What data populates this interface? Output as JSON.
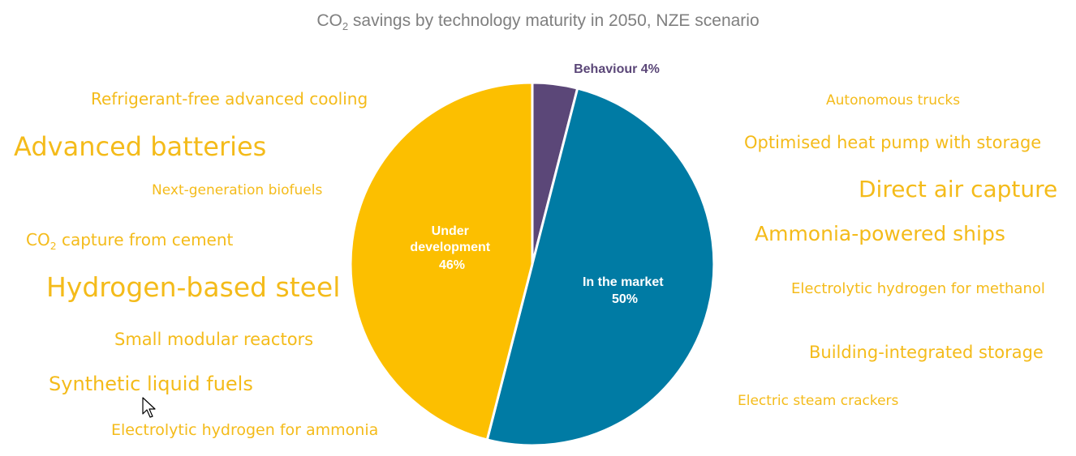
{
  "chart_data": {
    "type": "pie",
    "title_main": "CO",
    "title_sub": "2",
    "title_rest": " savings by technology maturity in 2050, NZE scenario",
    "slices": [
      {
        "label": "Behaviour",
        "value": 4,
        "pct_text": "4%",
        "color": "#5b4778"
      },
      {
        "label": "In the market",
        "value": 50,
        "pct_text": "50%",
        "color": "#007ba4"
      },
      {
        "label": "Under development",
        "value": 46,
        "pct_text": "46%",
        "color": "#fcbf00"
      }
    ],
    "behaviour_label": "Behaviour 4%",
    "in_market_line1": "In the market",
    "in_market_line2": "50%",
    "under_dev_line1": "Under",
    "under_dev_line2": "development",
    "under_dev_line3": "46%"
  },
  "technologies_left": [
    {
      "label": "Refrigerant-free advanced cooling"
    },
    {
      "label": "Advanced batteries"
    },
    {
      "label": "Next-generation biofuels"
    },
    {
      "label_main": "CO",
      "label_sub": "2",
      "label_rest": " capture from cement"
    },
    {
      "label": "Hydrogen-based steel"
    },
    {
      "label": "Small modular reactors"
    },
    {
      "label": "Synthetic liquid fuels"
    },
    {
      "label": "Electrolytic hydrogen for ammonia"
    }
  ],
  "technologies_right": [
    {
      "label": "Autonomous trucks"
    },
    {
      "label": "Optimised heat pump with storage"
    },
    {
      "label": "Direct air capture"
    },
    {
      "label": "Ammonia-powered ships"
    },
    {
      "label": "Electrolytic hydrogen for methanol"
    },
    {
      "label": "Building-integrated storage"
    },
    {
      "label": "Electric steam crackers"
    }
  ],
  "colors": {
    "tech_text": "#f4bb1a",
    "title_text": "#7f7f7f",
    "behaviour_text": "#5b4778"
  }
}
